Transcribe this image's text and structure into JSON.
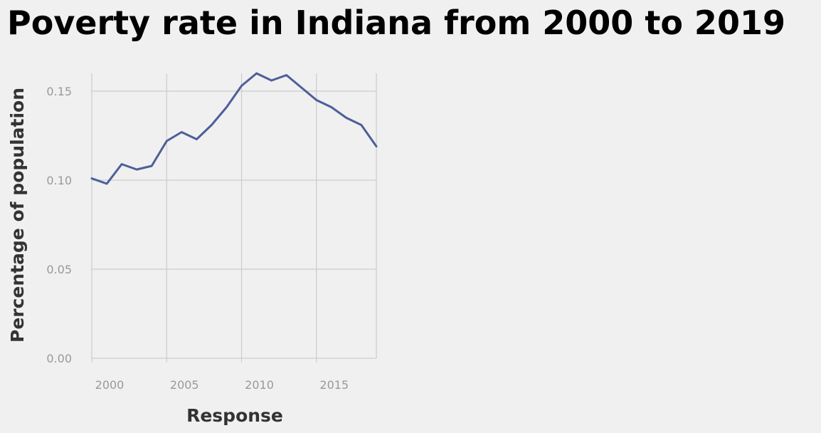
{
  "chart_data": {
    "type": "line",
    "title": "Poverty rate in Indiana from 2000 to 2019",
    "xlabel": "Response",
    "ylabel": "Percentage of population",
    "x": [
      2000,
      2001,
      2002,
      2003,
      2004,
      2005,
      2006,
      2007,
      2008,
      2009,
      2010,
      2011,
      2012,
      2013,
      2014,
      2015,
      2016,
      2017,
      2018,
      2019
    ],
    "series": [
      {
        "values": [
          0.101,
          0.098,
          0.109,
          0.106,
          0.108,
          0.122,
          0.127,
          0.123,
          0.131,
          0.141,
          0.153,
          0.16,
          0.156,
          0.159,
          0.152,
          0.145,
          0.141,
          0.135,
          0.131,
          0.119
        ]
      }
    ],
    "xlim": [
      2000,
      2019
    ],
    "ylim": [
      0,
      0.16
    ],
    "xticks": [
      2000,
      2005,
      2010,
      2015
    ],
    "xtick_labels": [
      "2000",
      "2005",
      "2010",
      "2015"
    ],
    "yticks": [
      0,
      0.05,
      0.1,
      0.15
    ],
    "ytick_labels": [
      "0.00",
      "0.05",
      "0.10",
      "0.15"
    ],
    "grid": true,
    "line_color": "#4c5f99",
    "grid_color": "#cccccc",
    "background_color": "#f0f0f0"
  }
}
